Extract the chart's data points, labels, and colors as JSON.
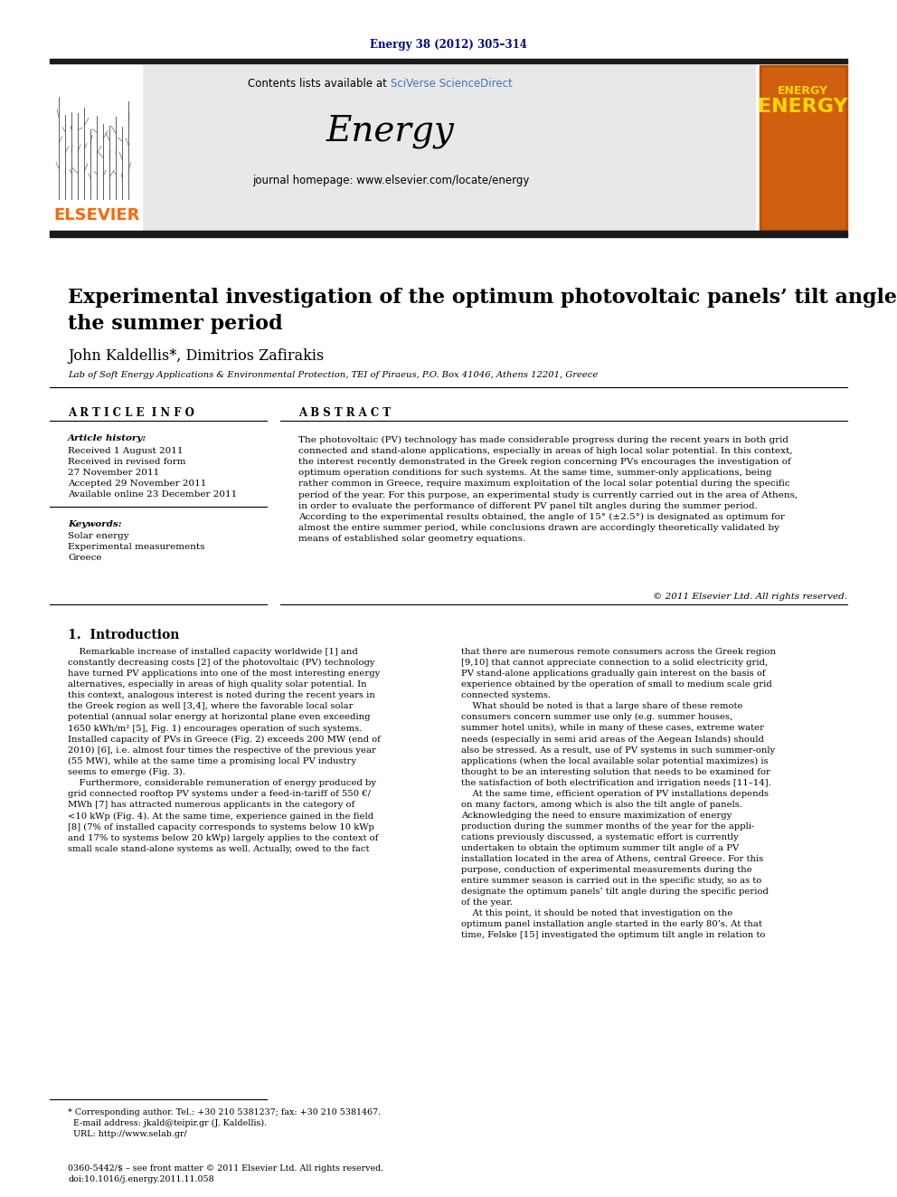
{
  "journal_ref": "Energy 38 (2012) 305–314",
  "journal_ref_color": "#00008B",
  "header_bg": "#E8E8E8",
  "contents_text": "Contents lists available at ",
  "sciverse_text": "SciVerse ScienceDirect",
  "sciverse_color": "#4472C4",
  "journal_name": "Energy",
  "journal_url": "journal homepage: www.elsevier.com/locate/energy",
  "elsevier_color": "#FF6600",
  "paper_title": "Experimental investigation of the optimum photovoltaic panels’ tilt angle during\nthe summer period",
  "authors": "John Kaldellis*, Dimitrios Zafirakis",
  "affiliation": "Lab of Soft Energy Applications & Environmental Protection, TEI of Piraeus, P.O. Box 41046, Athens 12201, Greece",
  "article_info_title": "A R T I C L E  I N F O",
  "article_history_label": "Article history:",
  "received1": "Received 1 August 2011",
  "received_revised": "Received in revised form",
  "received_revised2": "27 November 2011",
  "accepted": "Accepted 29 November 2011",
  "available": "Available online 23 December 2011",
  "keywords_label": "Keywords:",
  "keyword1": "Solar energy",
  "keyword2": "Experimental measurements",
  "keyword3": "Greece",
  "abstract_title": "A B S T R A C T",
  "abstract_text": "The photovoltaic (PV) technology has made considerable progress during the recent years in both grid\nconnected and stand-alone applications, especially in areas of high local solar potential. In this context,\nthe interest recently demonstrated in the Greek region concerning PVs encourages the investigation of\noptimum operation conditions for such systems. At the same time, summer-only applications, being\nrather common in Greece, require maximum exploitation of the local solar potential during the specific\nperiod of the year. For this purpose, an experimental study is currently carried out in the area of Athens,\nin order to evaluate the performance of different PV panel tilt angles during the summer period.\nAccording to the experimental results obtained, the angle of 15° (±2.5°) is designated as optimum for\nalmost the entire summer period, while conclusions drawn are accordingly theoretically validated by\nmeans of established solar geometry equations.",
  "copyright": "© 2011 Elsevier Ltd. All rights reserved.",
  "intro_title": "1.  Introduction",
  "intro_col1": "    Remarkable increase of installed capacity worldwide [1] and\nconstantly decreasing costs [2] of the photovoltaic (PV) technology\nhave turned PV applications into one of the most interesting energy\nalternatives, especially in areas of high quality solar potential. In\nthis context, analogous interest is noted during the recent years in\nthe Greek region as well [3,4], where the favorable local solar\npotential (annual solar energy at horizontal plane even exceeding\n1650 kWh/m² [5], Fig. 1) encourages operation of such systems.\nInstalled capacity of PVs in Greece (Fig. 2) exceeds 200 MW (end of\n2010) [6], i.e. almost four times the respective of the previous year\n(55 MW), while at the same time a promising local PV industry\nseems to emerge (Fig. 3).\n    Furthermore, considerable remuneration of energy produced by\ngrid connected rooftop PV systems under a feed-in-tariff of 550 €/\nMWh [7] has attracted numerous applicants in the category of\n<10 kWp (Fig. 4). At the same time, experience gained in the field\n[8] (7% of installed capacity corresponds to systems below 10 kWp\nand 17% to systems below 20 kWp) largely applies to the context of\nsmall scale stand-alone systems as well. Actually, owed to the fact",
  "intro_col2": "that there are numerous remote consumers across the Greek region\n[9,10] that cannot appreciate connection to a solid electricity grid,\nPV stand-alone applications gradually gain interest on the basis of\nexperience obtained by the operation of small to medium scale grid\nconnected systems.\n    What should be noted is that a large share of these remote\nconsumers concern summer use only (e.g. summer houses,\nsummer hotel units), while in many of these cases, extreme water\nneeds (especially in semi arid areas of the Aegean Islands) should\nalso be stressed. As a result, use of PV systems in such summer-only\napplications (when the local available solar potential maximizes) is\nthought to be an interesting solution that needs to be examined for\nthe satisfaction of both electrification and irrigation needs [11–14].\n    At the same time, efficient operation of PV installations depends\non many factors, among which is also the tilt angle of panels.\nAcknowledging the need to ensure maximization of energy\nproduction during the summer months of the year for the appli-\ncations previously discussed, a systematic effort is currently\nundertaken to obtain the optimum summer tilt angle of a PV\ninstallation located in the area of Athens, central Greece. For this\npurpose, conduction of experimental measurements during the\nentire summer season is carried out in the specific study, so as to\ndesignate the optimum panels’ tilt angle during the specific period\nof the year.\n    At this point, it should be noted that investigation on the\noptimum panel installation angle started in the early 80’s. At that\ntime, Felske [15] investigated the optimum tilt angle in relation to",
  "footnote_text": "* Corresponding author. Tel.: +30 210 5381237; fax: +30 210 5381467.\n  E-mail address: jkald@teipir.gr (J. Kaldellis).\n  URL: http://www.selab.gr/",
  "issn_text": "0360-5442/$ – see front matter © 2011 Elsevier Ltd. All rights reserved.\ndoi:10.1016/j.energy.2011.11.058",
  "bg_color": "#FFFFFF",
  "text_color": "#000000",
  "thick_bar_color": "#1A1A1A"
}
